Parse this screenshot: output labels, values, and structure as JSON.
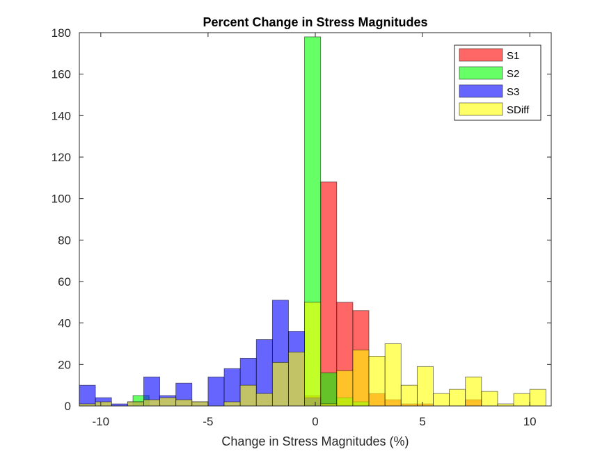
{
  "chart_data": {
    "type": "bar",
    "subtype": "overlapping-histogram",
    "title": "Percent Change in Stress Magnitudes",
    "xlabel": "Change in Stress Magnitudes (%)",
    "ylabel": "",
    "xlim": [
      -11,
      11
    ],
    "ylim": [
      0,
      180
    ],
    "xticks": [
      -10,
      -5,
      0,
      5,
      10
    ],
    "yticks": [
      0,
      20,
      40,
      60,
      80,
      100,
      120,
      140,
      160,
      180
    ],
    "bin_width": 0.75,
    "legend_position": "top-right",
    "series": [
      {
        "name": "S1",
        "color": "#ff0000",
        "bins": [
          {
            "x0": -0.5,
            "x1": 0.25,
            "value": 5
          },
          {
            "x0": 0.25,
            "x1": 1.0,
            "value": 108
          },
          {
            "x0": 1.0,
            "x1": 1.75,
            "value": 50
          },
          {
            "x0": 1.75,
            "x1": 2.5,
            "value": 46
          },
          {
            "x0": 2.5,
            "x1": 3.25,
            "value": 6
          },
          {
            "x0": 3.25,
            "x1": 4.0,
            "value": 3
          },
          {
            "x0": 4.0,
            "x1": 4.75,
            "value": 1
          },
          {
            "x0": 4.75,
            "x1": 5.5,
            "value": 1
          },
          {
            "x0": 7.0,
            "x1": 7.75,
            "value": 3
          }
        ]
      },
      {
        "name": "S2",
        "color": "#00ff00",
        "bins": [
          {
            "x0": -8.5,
            "x1": -7.75,
            "value": 5
          },
          {
            "x0": -0.5,
            "x1": 0.25,
            "value": 178
          },
          {
            "x0": 0.25,
            "x1": 1.0,
            "value": 16
          },
          {
            "x0": 1.0,
            "x1": 1.75,
            "value": 4
          },
          {
            "x0": 1.75,
            "x1": 2.5,
            "value": 2
          }
        ]
      },
      {
        "name": "S3",
        "color": "#0000ff",
        "bins": [
          {
            "x0": -11.0,
            "x1": -10.25,
            "value": 10
          },
          {
            "x0": -10.25,
            "x1": -9.5,
            "value": 4
          },
          {
            "x0": -9.5,
            "x1": -8.75,
            "value": 1
          },
          {
            "x0": -8.75,
            "x1": -8.0,
            "value": 2
          },
          {
            "x0": -8.0,
            "x1": -7.25,
            "value": 14
          },
          {
            "x0": -7.25,
            "x1": -6.5,
            "value": 5
          },
          {
            "x0": -6.5,
            "x1": -5.75,
            "value": 11
          },
          {
            "x0": -5.75,
            "x1": -5.0,
            "value": 2
          },
          {
            "x0": -5.0,
            "x1": -4.25,
            "value": 14
          },
          {
            "x0": -4.25,
            "x1": -3.5,
            "value": 18
          },
          {
            "x0": -3.5,
            "x1": -2.75,
            "value": 23
          },
          {
            "x0": -2.75,
            "x1": -2.0,
            "value": 32
          },
          {
            "x0": -2.0,
            "x1": -1.25,
            "value": 51
          },
          {
            "x0": -1.25,
            "x1": -0.5,
            "value": 36
          },
          {
            "x0": -0.5,
            "x1": 0.25,
            "value": 4
          }
        ]
      },
      {
        "name": "SDiff",
        "color": "#ffff00",
        "bins": [
          {
            "x0": -11.0,
            "x1": -10.25,
            "value": 1
          },
          {
            "x0": -10.25,
            "x1": -9.5,
            "value": 2
          },
          {
            "x0": -8.75,
            "x1": -8.0,
            "value": 2
          },
          {
            "x0": -8.0,
            "x1": -7.25,
            "value": 3
          },
          {
            "x0": -7.25,
            "x1": -6.5,
            "value": 4
          },
          {
            "x0": -6.5,
            "x1": -5.75,
            "value": 3
          },
          {
            "x0": -5.75,
            "x1": -5.0,
            "value": 2
          },
          {
            "x0": -4.25,
            "x1": -3.5,
            "value": 2
          },
          {
            "x0": -3.5,
            "x1": -2.75,
            "value": 10
          },
          {
            "x0": -2.75,
            "x1": -2.0,
            "value": 6
          },
          {
            "x0": -2.0,
            "x1": -1.25,
            "value": 21
          },
          {
            "x0": -1.25,
            "x1": -0.5,
            "value": 26
          },
          {
            "x0": -0.5,
            "x1": 0.25,
            "value": 50
          },
          {
            "x0": 0.25,
            "x1": 1.0,
            "value": 1
          },
          {
            "x0": 1.0,
            "x1": 1.75,
            "value": 17
          },
          {
            "x0": 1.75,
            "x1": 2.5,
            "value": 27
          },
          {
            "x0": 2.5,
            "x1": 3.25,
            "value": 24
          },
          {
            "x0": 3.25,
            "x1": 4.0,
            "value": 30
          },
          {
            "x0": 4.0,
            "x1": 4.75,
            "value": 10
          },
          {
            "x0": 4.75,
            "x1": 5.5,
            "value": 19
          },
          {
            "x0": 5.5,
            "x1": 6.25,
            "value": 6
          },
          {
            "x0": 6.25,
            "x1": 7.0,
            "value": 8
          },
          {
            "x0": 7.0,
            "x1": 7.75,
            "value": 14
          },
          {
            "x0": 7.75,
            "x1": 8.5,
            "value": 7
          },
          {
            "x0": 8.5,
            "x1": 9.25,
            "value": 1
          },
          {
            "x0": 9.25,
            "x1": 10.0,
            "value": 6
          },
          {
            "x0": 10.0,
            "x1": 10.75,
            "value": 8
          }
        ]
      }
    ]
  }
}
